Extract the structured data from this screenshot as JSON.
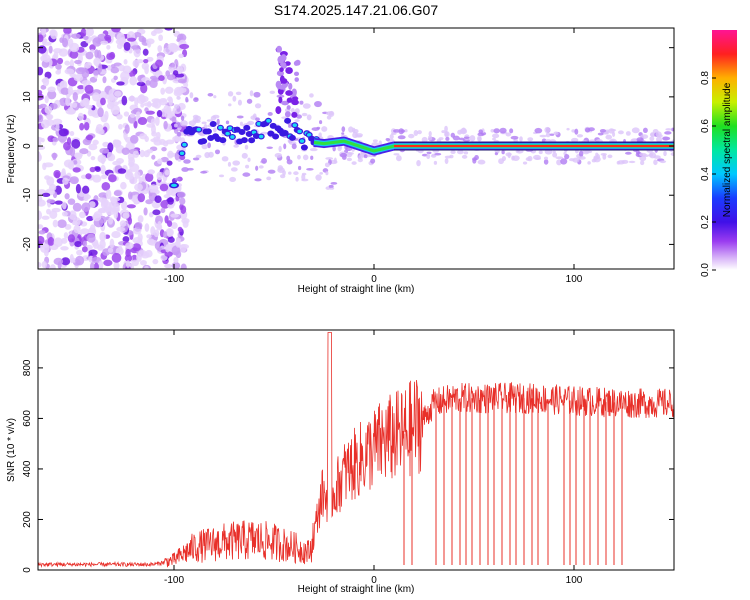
{
  "title": "S174.2025.147.21.06.G07",
  "colors": {
    "snr_line": "#e8302a",
    "axis": "#000000",
    "background": "#ffffff"
  },
  "chart_data": [
    {
      "type": "heatmap",
      "xlabel": "Height of straight line (km)",
      "ylabel": "Frequency (Hz)",
      "xlim": [
        -168,
        150
      ],
      "ylim": [
        -25,
        24
      ],
      "xticks": [
        -100,
        0,
        100
      ],
      "yticks": [
        -20,
        -10,
        0,
        10,
        20
      ],
      "grid": false,
      "colorbar": {
        "label": "Normalized spectral amplitude",
        "range": [
          0.0,
          1.0
        ],
        "ticks": [
          0.0,
          0.2,
          0.4,
          0.6,
          0.8
        ],
        "tick_labels": [
          "0.0",
          "0.2",
          "0.4",
          "0.6",
          "0.8"
        ],
        "colormap": "rainbow (violet-blue-cyan-green-yellow-red-magenta)",
        "placement": "right"
      },
      "ridge": [
        {
          "x": -95,
          "y": 2
        },
        {
          "x": -85,
          "y": 3
        },
        {
          "x": -75,
          "y": 2.5
        },
        {
          "x": -65,
          "y": 2
        },
        {
          "x": -55,
          "y": 3
        },
        {
          "x": -45,
          "y": 4
        },
        {
          "x": -35,
          "y": 1
        },
        {
          "x": -25,
          "y": 0.5
        },
        {
          "x": -15,
          "y": 1
        },
        {
          "x": 0,
          "y": -1
        },
        {
          "x": 10,
          "y": 0
        },
        {
          "x": 150,
          "y": 0
        }
      ]
    },
    {
      "type": "line",
      "xlabel": "Height of straight line (km)",
      "ylabel": "SNR (10 * v/v)",
      "xlim": [
        -168,
        150
      ],
      "ylim": [
        0,
        950
      ],
      "xticks": [
        -100,
        0,
        100
      ],
      "yticks": [
        0,
        200,
        400,
        600,
        800
      ],
      "grid": false,
      "series": [
        {
          "color": "#e8302a",
          "envelope": [
            {
              "x": -168,
              "y": 22
            },
            {
              "x": -110,
              "y": 22
            },
            {
              "x": -100,
              "y": 40
            },
            {
              "x": -90,
              "y": 90
            },
            {
              "x": -75,
              "y": 110
            },
            {
              "x": -60,
              "y": 120
            },
            {
              "x": -50,
              "y": 110
            },
            {
              "x": -40,
              "y": 90
            },
            {
              "x": -32,
              "y": 70
            },
            {
              "x": -26,
              "y": 300
            },
            {
              "x": -22,
              "y": 280
            },
            {
              "x": -15,
              "y": 380
            },
            {
              "x": -5,
              "y": 450
            },
            {
              "x": 5,
              "y": 510
            },
            {
              "x": 15,
              "y": 540
            },
            {
              "x": 25,
              "y": 600
            },
            {
              "x": 30,
              "y": 660
            },
            {
              "x": 40,
              "y": 680
            },
            {
              "x": 60,
              "y": 680
            },
            {
              "x": 80,
              "y": 680
            },
            {
              "x": 100,
              "y": 670
            },
            {
              "x": 130,
              "y": 660
            },
            {
              "x": 150,
              "y": 660
            }
          ],
          "peak": {
            "x": -22,
            "y": 940
          },
          "dropouts_x": [
            15,
            19,
            31,
            35,
            39,
            43,
            46,
            49,
            53,
            57,
            60,
            64,
            68,
            71,
            75,
            79,
            82,
            87,
            95,
            98,
            101,
            105,
            108,
            112,
            116,
            120,
            124
          ]
        }
      ]
    }
  ]
}
